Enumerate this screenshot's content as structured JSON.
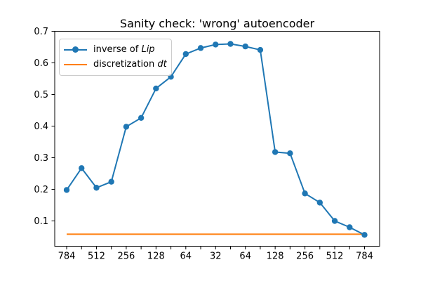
{
  "figure": {
    "title": "Sanity check: 'wrong' autoencoder",
    "background_color": "#ffffff",
    "axes_edge_color": "#000000"
  },
  "legend": {
    "entries": [
      {
        "prefix": "inverse of ",
        "italic": "Lip",
        "color": "#1f77b4",
        "marker": "circle"
      },
      {
        "prefix": "discretization ",
        "italic": "dt",
        "color": "#ff7f0e",
        "marker": "none"
      }
    ]
  },
  "chart_data": {
    "type": "line",
    "title": "Sanity check: 'wrong' autoencoder",
    "xlabel": "",
    "ylabel": "",
    "x_tick_labels": [
      "784",
      "",
      "512",
      "",
      "256",
      "",
      "128",
      "",
      "64",
      "",
      "32",
      "",
      "64",
      "",
      "128",
      "",
      "256",
      "",
      "512",
      "",
      "784"
    ],
    "y_ticks": [
      0.1,
      0.2,
      0.3,
      0.4,
      0.5,
      0.6,
      0.7
    ],
    "y_tick_labels": [
      "0.1",
      "0.2",
      "0.3",
      "0.4",
      "0.5",
      "0.6",
      "0.7"
    ],
    "ylim": [
      0.02,
      0.7
    ],
    "grid": false,
    "legend_position": "upper left",
    "series": [
      {
        "name": "inverse of Lip",
        "color": "#1f77b4",
        "marker": "o",
        "values": [
          0.198,
          0.267,
          0.205,
          0.224,
          0.398,
          0.426,
          0.519,
          0.556,
          0.628,
          0.647,
          0.658,
          0.66,
          0.652,
          0.641,
          0.318,
          0.314,
          0.187,
          0.158,
          0.1,
          0.08,
          0.056
        ]
      },
      {
        "name": "discretization dt",
        "color": "#ff7f0e",
        "marker": "none",
        "constant_value": 0.058
      }
    ]
  }
}
